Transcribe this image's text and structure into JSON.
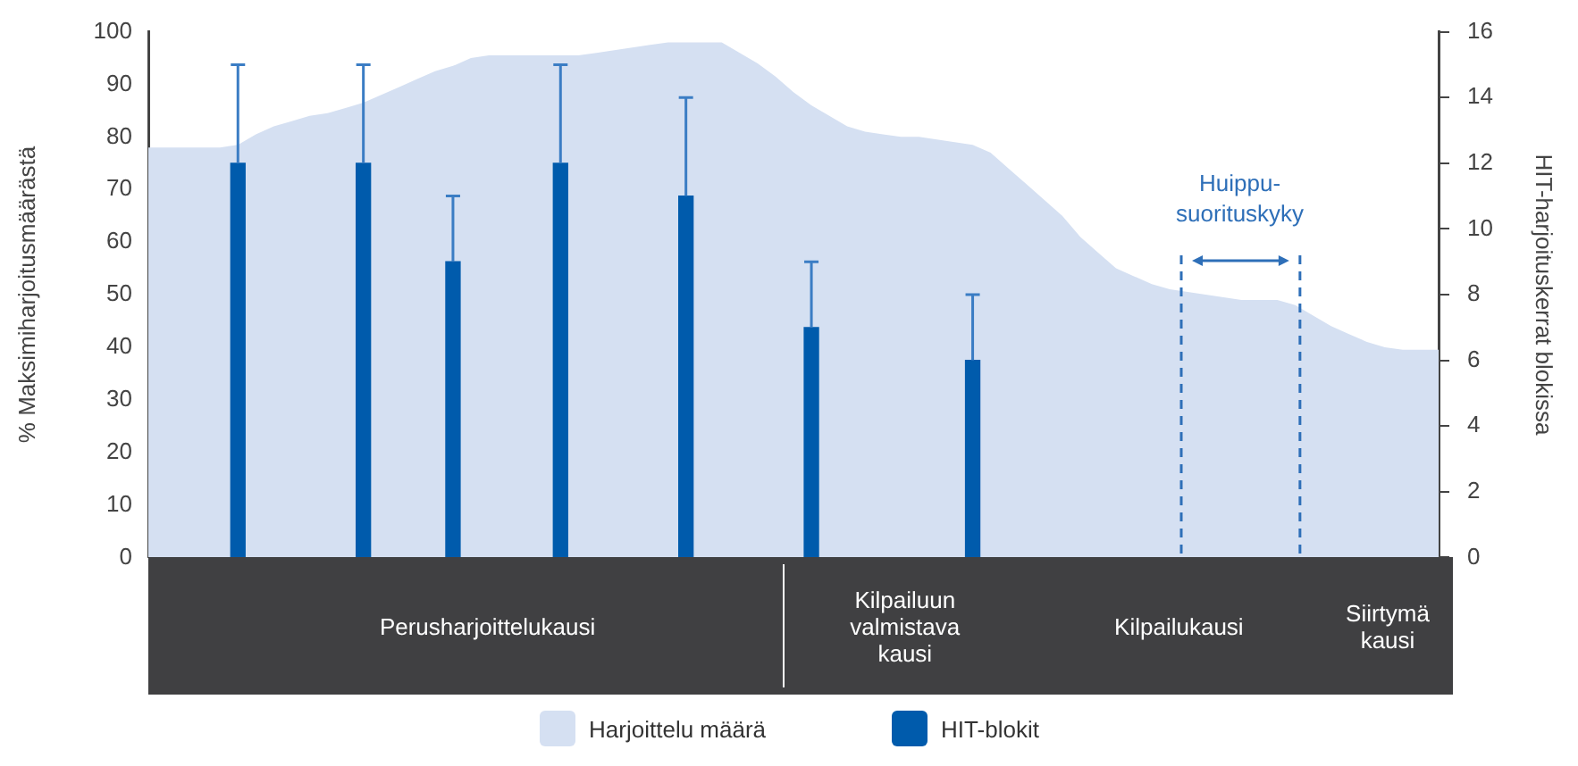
{
  "chart_data": {
    "type": "bar",
    "ylabel": "% Maksimiharjoitusmäärästä",
    "y2label": "HIT-harjoituskerrat blokissa",
    "categories": [
      null,
      null,
      null,
      null,
      null,
      null,
      null,
      null,
      null,
      null,
      null,
      null,
      null,
      null,
      null,
      null,
      null,
      null,
      null,
      null,
      null,
      null,
      null,
      null,
      null,
      null,
      null,
      null,
      null,
      null,
      null,
      null,
      null,
      null,
      null,
      null,
      null,
      null,
      null,
      null,
      null,
      null,
      null,
      null,
      null,
      null,
      null,
      null,
      null,
      null,
      null,
      null,
      null,
      null,
      null,
      null,
      null,
      null,
      null,
      null,
      null,
      null,
      null,
      null,
      null,
      null,
      null,
      null,
      null,
      null,
      null,
      null,
      null
    ],
    "series": [
      {
        "name": "Harjoittelu määrä",
        "type": "area",
        "color": "#d5e0f2",
        "values": [
          78,
          78,
          78,
          78,
          78,
          78.5,
          80.5,
          82,
          83,
          84,
          84.5,
          85.5,
          86.5,
          88,
          89.5,
          91,
          92.5,
          93.5,
          95,
          95.5,
          95.5,
          95.5,
          95.5,
          95.5,
          95.5,
          96,
          96.5,
          97,
          97.5,
          98,
          98,
          98,
          98,
          96,
          94,
          91.5,
          88.5,
          86,
          84,
          82,
          81,
          80.5,
          80,
          80,
          79.5,
          79,
          78.5,
          77,
          74,
          71,
          68,
          65,
          61,
          58,
          55,
          53.5,
          52,
          51,
          50.5,
          50,
          49.5,
          49,
          49,
          49,
          48,
          46,
          44,
          42.5,
          41,
          40,
          39.5,
          39.5,
          39.5
        ]
      },
      {
        "name": "HIT-blokit",
        "axis": "y2",
        "color": "#005bac",
        "values": [
          null,
          null,
          null,
          null,
          null,
          12,
          null,
          null,
          null,
          null,
          null,
          null,
          12,
          null,
          null,
          null,
          null,
          9,
          null,
          null,
          null,
          null,
          null,
          12,
          null,
          null,
          null,
          null,
          null,
          null,
          11,
          null,
          null,
          null,
          null,
          null,
          null,
          7,
          null,
          null,
          null,
          null,
          null,
          null,
          null,
          null,
          6,
          null,
          null,
          null,
          null,
          null,
          null,
          null,
          null,
          null,
          null,
          null,
          null,
          null,
          null,
          null,
          null,
          null,
          null,
          null,
          null,
          null,
          null,
          null,
          null,
          null,
          null
        ],
        "errors": [
          null,
          null,
          null,
          null,
          null,
          [
            12,
            15
          ],
          null,
          null,
          null,
          null,
          null,
          null,
          [
            12,
            15
          ],
          null,
          null,
          null,
          null,
          [
            9,
            11
          ],
          null,
          null,
          null,
          null,
          null,
          [
            12,
            15
          ],
          null,
          null,
          null,
          null,
          null,
          null,
          [
            11,
            14
          ],
          null,
          null,
          null,
          null,
          null,
          null,
          [
            7,
            9
          ],
          null,
          null,
          null,
          null,
          null,
          null,
          null,
          null,
          [
            6,
            8
          ],
          null,
          null,
          null,
          null,
          null,
          null,
          null,
          null,
          null,
          null,
          null,
          null,
          null,
          null,
          null,
          null,
          null,
          null,
          null,
          null,
          null,
          null,
          null,
          null,
          null,
          null
        ]
      }
    ],
    "ylim": [
      0,
      100
    ],
    "yticks": [
      0,
      10,
      20,
      30,
      40,
      50,
      60,
      70,
      80,
      90,
      100
    ],
    "y2lim": [
      0,
      16
    ],
    "y2ticks": [
      0,
      2,
      4,
      6,
      8,
      10,
      12,
      14,
      16
    ],
    "legend": "bottom",
    "annotations": [
      "Huippu-\nsuorituskyky",
      "Perusharjoittelukausi",
      "Kilpailuun\nvalmistava\nkausi",
      "Kilpailukausi",
      "Siirtymä\nkausi"
    ]
  }
}
